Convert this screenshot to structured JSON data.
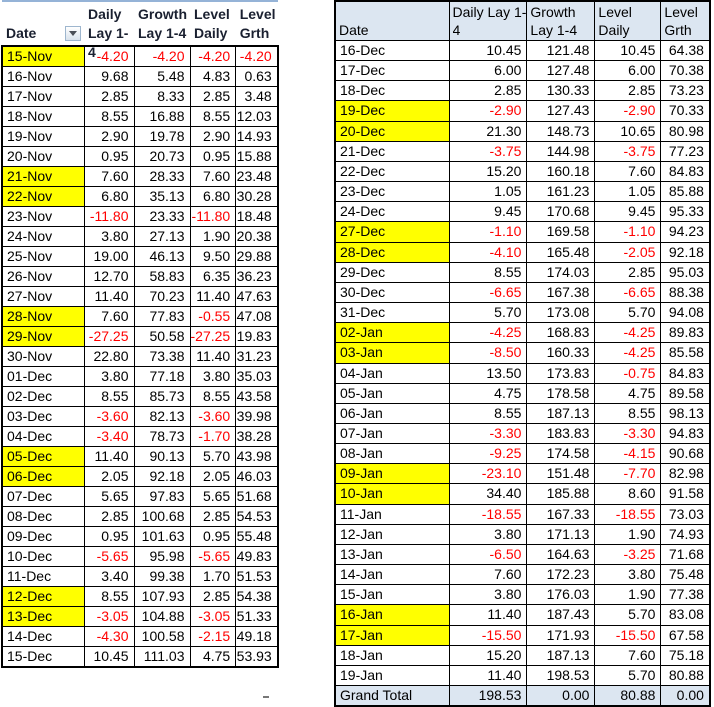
{
  "colors": {
    "highlight": "#FFFF00",
    "negative_text": "#FF0000",
    "header_fill_right": "#DCE6F1",
    "grand_total_fill": "#DCE6F1",
    "grid": "#000000",
    "left_header_top_rule": "#95B3D7"
  },
  "left_table": {
    "columns": [
      {
        "line1": "",
        "line2": "Date"
      },
      {
        "line1": "Daily",
        "line2": "Lay 1-4"
      },
      {
        "line1": "Growth",
        "line2": "Lay 1-4"
      },
      {
        "line1": "Level",
        "line2": "Daily"
      },
      {
        "line1": "Level",
        "line2": "Grth"
      }
    ],
    "filter_icon": "filter-dropdown",
    "rows": [
      {
        "date": "15-Nov",
        "highlight": true,
        "values": [
          "-4.20",
          "-4.20",
          "-4.20",
          "-4.20"
        ]
      },
      {
        "date": "16-Nov",
        "highlight": false,
        "values": [
          "9.68",
          "5.48",
          "4.83",
          "0.63"
        ]
      },
      {
        "date": "17-Nov",
        "highlight": false,
        "values": [
          "2.85",
          "8.33",
          "2.85",
          "3.48"
        ]
      },
      {
        "date": "18-Nov",
        "highlight": false,
        "values": [
          "8.55",
          "16.88",
          "8.55",
          "12.03"
        ]
      },
      {
        "date": "19-Nov",
        "highlight": false,
        "values": [
          "2.90",
          "19.78",
          "2.90",
          "14.93"
        ]
      },
      {
        "date": "20-Nov",
        "highlight": false,
        "values": [
          "0.95",
          "20.73",
          "0.95",
          "15.88"
        ]
      },
      {
        "date": "21-Nov",
        "highlight": true,
        "values": [
          "7.60",
          "28.33",
          "7.60",
          "23.48"
        ]
      },
      {
        "date": "22-Nov",
        "highlight": true,
        "values": [
          "6.80",
          "35.13",
          "6.80",
          "30.28"
        ]
      },
      {
        "date": "23-Nov",
        "highlight": false,
        "values": [
          "-11.80",
          "23.33",
          "-11.80",
          "18.48"
        ]
      },
      {
        "date": "24-Nov",
        "highlight": false,
        "values": [
          "3.80",
          "27.13",
          "1.90",
          "20.38"
        ]
      },
      {
        "date": "25-Nov",
        "highlight": false,
        "values": [
          "19.00",
          "46.13",
          "9.50",
          "29.88"
        ]
      },
      {
        "date": "26-Nov",
        "highlight": false,
        "values": [
          "12.70",
          "58.83",
          "6.35",
          "36.23"
        ]
      },
      {
        "date": "27-Nov",
        "highlight": false,
        "values": [
          "11.40",
          "70.23",
          "11.40",
          "47.63"
        ]
      },
      {
        "date": "28-Nov",
        "highlight": true,
        "values": [
          "7.60",
          "77.83",
          "-0.55",
          "47.08"
        ]
      },
      {
        "date": "29-Nov",
        "highlight": true,
        "values": [
          "-27.25",
          "50.58",
          "-27.25",
          "19.83"
        ]
      },
      {
        "date": "30-Nov",
        "highlight": false,
        "values": [
          "22.80",
          "73.38",
          "11.40",
          "31.23"
        ]
      },
      {
        "date": "01-Dec",
        "highlight": false,
        "values": [
          "3.80",
          "77.18",
          "3.80",
          "35.03"
        ]
      },
      {
        "date": "02-Dec",
        "highlight": false,
        "values": [
          "8.55",
          "85.73",
          "8.55",
          "43.58"
        ]
      },
      {
        "date": "03-Dec",
        "highlight": false,
        "values": [
          "-3.60",
          "82.13",
          "-3.60",
          "39.98"
        ]
      },
      {
        "date": "04-Dec",
        "highlight": false,
        "values": [
          "-3.40",
          "78.73",
          "-1.70",
          "38.28"
        ]
      },
      {
        "date": "05-Dec",
        "highlight": true,
        "values": [
          "11.40",
          "90.13",
          "5.70",
          "43.98"
        ]
      },
      {
        "date": "06-Dec",
        "highlight": true,
        "values": [
          "2.05",
          "92.18",
          "2.05",
          "46.03"
        ]
      },
      {
        "date": "07-Dec",
        "highlight": false,
        "values": [
          "5.65",
          "97.83",
          "5.65",
          "51.68"
        ]
      },
      {
        "date": "08-Dec",
        "highlight": false,
        "values": [
          "2.85",
          "100.68",
          "2.85",
          "54.53"
        ]
      },
      {
        "date": "09-Dec",
        "highlight": false,
        "values": [
          "0.95",
          "101.63",
          "0.95",
          "55.48"
        ]
      },
      {
        "date": "10-Dec",
        "highlight": false,
        "values": [
          "-5.65",
          "95.98",
          "-5.65",
          "49.83"
        ]
      },
      {
        "date": "11-Dec",
        "highlight": false,
        "values": [
          "3.40",
          "99.38",
          "1.70",
          "51.53"
        ]
      },
      {
        "date": "12-Dec",
        "highlight": true,
        "values": [
          "8.55",
          "107.93",
          "2.85",
          "54.38"
        ]
      },
      {
        "date": "13-Dec",
        "highlight": true,
        "values": [
          "-3.05",
          "104.88",
          "-3.05",
          "51.33"
        ]
      },
      {
        "date": "14-Dec",
        "highlight": false,
        "values": [
          "-4.30",
          "100.58",
          "-2.15",
          "49.18"
        ]
      },
      {
        "date": "15-Dec",
        "highlight": false,
        "values": [
          "10.45",
          "111.03",
          "4.75",
          "53.93"
        ]
      }
    ]
  },
  "right_table": {
    "columns": [
      {
        "line1": "",
        "line2": "Date"
      },
      {
        "line1": "Daily Lay 1-",
        "line2": "4"
      },
      {
        "line1": "Growth",
        "line2": "Lay 1-4"
      },
      {
        "line1": "Level",
        "line2": "Daily"
      },
      {
        "line1": "Level",
        "line2": "Grth"
      }
    ],
    "rows": [
      {
        "date": "16-Dec",
        "highlight": false,
        "values": [
          "10.45",
          "121.48",
          "10.45",
          "64.38"
        ]
      },
      {
        "date": "17-Dec",
        "highlight": false,
        "values": [
          "6.00",
          "127.48",
          "6.00",
          "70.38"
        ]
      },
      {
        "date": "18-Dec",
        "highlight": false,
        "values": [
          "2.85",
          "130.33",
          "2.85",
          "73.23"
        ]
      },
      {
        "date": "19-Dec",
        "highlight": true,
        "values": [
          "-2.90",
          "127.43",
          "-2.90",
          "70.33"
        ]
      },
      {
        "date": "20-Dec",
        "highlight": true,
        "values": [
          "21.30",
          "148.73",
          "10.65",
          "80.98"
        ]
      },
      {
        "date": "21-Dec",
        "highlight": false,
        "values": [
          "-3.75",
          "144.98",
          "-3.75",
          "77.23"
        ]
      },
      {
        "date": "22-Dec",
        "highlight": false,
        "values": [
          "15.20",
          "160.18",
          "7.60",
          "84.83"
        ]
      },
      {
        "date": "23-Dec",
        "highlight": false,
        "values": [
          "1.05",
          "161.23",
          "1.05",
          "85.88"
        ]
      },
      {
        "date": "24-Dec",
        "highlight": false,
        "values": [
          "9.45",
          "170.68",
          "9.45",
          "95.33"
        ]
      },
      {
        "date": "27-Dec",
        "highlight": true,
        "values": [
          "-1.10",
          "169.58",
          "-1.10",
          "94.23"
        ]
      },
      {
        "date": "28-Dec",
        "highlight": true,
        "values": [
          "-4.10",
          "165.48",
          "-2.05",
          "92.18"
        ]
      },
      {
        "date": "29-Dec",
        "highlight": false,
        "values": [
          "8.55",
          "174.03",
          "2.85",
          "95.03"
        ]
      },
      {
        "date": "30-Dec",
        "highlight": false,
        "values": [
          "-6.65",
          "167.38",
          "-6.65",
          "88.38"
        ]
      },
      {
        "date": "31-Dec",
        "highlight": false,
        "values": [
          "5.70",
          "173.08",
          "5.70",
          "94.08"
        ]
      },
      {
        "date": "02-Jan",
        "highlight": true,
        "values": [
          "-4.25",
          "168.83",
          "-4.25",
          "89.83"
        ]
      },
      {
        "date": "03-Jan",
        "highlight": true,
        "values": [
          "-8.50",
          "160.33",
          "-4.25",
          "85.58"
        ]
      },
      {
        "date": "04-Jan",
        "highlight": false,
        "values": [
          "13.50",
          "173.83",
          "-0.75",
          "84.83"
        ]
      },
      {
        "date": "05-Jan",
        "highlight": false,
        "values": [
          "4.75",
          "178.58",
          "4.75",
          "89.58"
        ]
      },
      {
        "date": "06-Jan",
        "highlight": false,
        "values": [
          "8.55",
          "187.13",
          "8.55",
          "98.13"
        ]
      },
      {
        "date": "07-Jan",
        "highlight": false,
        "values": [
          "-3.30",
          "183.83",
          "-3.30",
          "94.83"
        ]
      },
      {
        "date": "08-Jan",
        "highlight": false,
        "values": [
          "-9.25",
          "174.58",
          "-4.15",
          "90.68"
        ]
      },
      {
        "date": "09-Jan",
        "highlight": true,
        "values": [
          "-23.10",
          "151.48",
          "-7.70",
          "82.98"
        ]
      },
      {
        "date": "10-Jan",
        "highlight": true,
        "values": [
          "34.40",
          "185.88",
          "8.60",
          "91.58"
        ]
      },
      {
        "date": "11-Jan",
        "highlight": false,
        "values": [
          "-18.55",
          "167.33",
          "-18.55",
          "73.03"
        ]
      },
      {
        "date": "12-Jan",
        "highlight": false,
        "values": [
          "3.80",
          "171.13",
          "1.90",
          "74.93"
        ]
      },
      {
        "date": "13-Jan",
        "highlight": false,
        "values": [
          "-6.50",
          "164.63",
          "-3.25",
          "71.68"
        ]
      },
      {
        "date": "14-Jan",
        "highlight": false,
        "values": [
          "7.60",
          "172.23",
          "3.80",
          "75.48"
        ]
      },
      {
        "date": "15-Jan",
        "highlight": false,
        "values": [
          "3.80",
          "176.03",
          "1.90",
          "77.38"
        ]
      },
      {
        "date": "16-Jan",
        "highlight": true,
        "values": [
          "11.40",
          "187.43",
          "5.70",
          "83.08"
        ]
      },
      {
        "date": "17-Jan",
        "highlight": true,
        "values": [
          "-15.50",
          "171.93",
          "-15.50",
          "67.58"
        ]
      },
      {
        "date": "18-Jan",
        "highlight": false,
        "values": [
          "15.20",
          "187.13",
          "7.60",
          "75.18"
        ]
      },
      {
        "date": "19-Jan",
        "highlight": false,
        "values": [
          "11.40",
          "198.53",
          "5.70",
          "80.88"
        ]
      }
    ],
    "grand_total": {
      "label": "Grand Total",
      "values": [
        "198.53",
        "0.00",
        "80.88",
        "0.00"
      ]
    }
  }
}
